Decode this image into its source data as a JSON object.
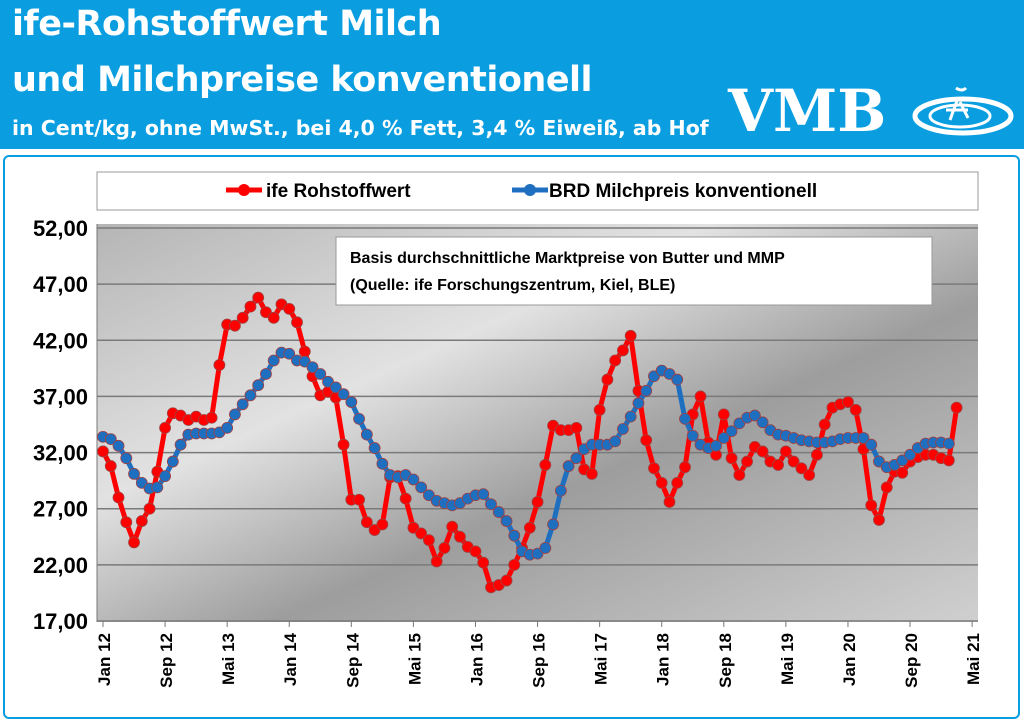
{
  "header": {
    "title_line1": "ife-Rohstoffwert Milch",
    "title_line2": "und Milchpreise konventionell",
    "subtitle": "in Cent/kg, ohne MwSt., bei 4,0 % Fett, 3,4 % Eiweiß, ab Hof",
    "logo_text": "VMB",
    "background_color": "#0a9ee0"
  },
  "chart_data": {
    "type": "line",
    "annotation_line1": "Basis durchschnittliche Marktpreise von Butter und MMP",
    "annotation_line2": "(Quelle: ife Forschungszentrum, Kiel, BLE)",
    "legend_placement": "top",
    "grid": true,
    "ylim": [
      17,
      52
    ],
    "y_ticks": [
      "17,00",
      "22,00",
      "27,00",
      "32,00",
      "37,00",
      "42,00",
      "47,00",
      "52,00"
    ],
    "x_start": "Jan 12",
    "x_ticks": [
      "Jan 12",
      "Sep 12",
      "Mai 13",
      "Jan 14",
      "Sep 14",
      "Mai 15",
      "Jan 16",
      "Sep 16",
      "Mai 17",
      "Jan 18",
      "Sep 18",
      "Mai 19",
      "Jan 20",
      "Sep 20",
      "Mai 21"
    ],
    "series": [
      {
        "name": "ife Rohstoffwert",
        "color": "#ff0000",
        "values": [
          32.1,
          30.8,
          28.0,
          25.8,
          24.0,
          25.9,
          27.0,
          30.3,
          34.2,
          35.5,
          35.3,
          34.9,
          35.2,
          34.9,
          35.1,
          39.8,
          43.4,
          43.3,
          44.0,
          45.0,
          45.8,
          44.5,
          44.0,
          45.2,
          44.8,
          43.6,
          41.0,
          38.8,
          37.1,
          37.4,
          36.9,
          32.7,
          27.8,
          27.8,
          25.8,
          25.1,
          25.6,
          29.8,
          29.9,
          27.9,
          25.3,
          24.8,
          24.2,
          22.3,
          23.5,
          25.4,
          24.5,
          23.6,
          23.2,
          22.2,
          20.0,
          20.2,
          20.6,
          22.0,
          23.5,
          25.3,
          27.6,
          30.9,
          34.4,
          34.0,
          34.0,
          34.2,
          30.5,
          30.1,
          35.8,
          38.5,
          40.2,
          41.1,
          42.4,
          37.5,
          33.1,
          30.6,
          29.3,
          27.6,
          29.3,
          30.7,
          35.4,
          37.0,
          32.9,
          31.8,
          35.4,
          31.5,
          30.0,
          31.2,
          32.5,
          32.1,
          31.2,
          30.9,
          32.1,
          31.2,
          30.6,
          30.0,
          31.8,
          34.5,
          36.0,
          36.3,
          36.5,
          35.8,
          32.3,
          27.3,
          26.0,
          28.9,
          30.3,
          30.2,
          31.2,
          31.6,
          31.8,
          31.8,
          31.5,
          31.3,
          36.0
        ]
      },
      {
        "name": "BRD Milchpreis konventionell",
        "color": "#1f6fc0",
        "values": [
          33.4,
          33.2,
          32.6,
          31.5,
          30.1,
          29.3,
          28.8,
          28.9,
          29.9,
          31.2,
          32.7,
          33.6,
          33.7,
          33.7,
          33.7,
          33.8,
          34.2,
          35.4,
          36.3,
          37.1,
          38.0,
          39.0,
          40.2,
          40.9,
          40.8,
          40.2,
          40.1,
          39.6,
          39.0,
          38.3,
          37.8,
          37.2,
          36.5,
          35.0,
          33.6,
          32.4,
          31.0,
          30.0,
          29.8,
          30.0,
          29.6,
          28.9,
          28.2,
          27.7,
          27.5,
          27.3,
          27.5,
          27.9,
          28.2,
          28.3,
          27.4,
          26.7,
          25.9,
          24.6,
          23.2,
          22.9,
          23.0,
          23.5,
          25.6,
          28.6,
          30.8,
          31.5,
          32.3,
          32.7,
          32.7,
          32.7,
          33.0,
          34.1,
          35.2,
          36.4,
          37.5,
          38.8,
          39.3,
          39.0,
          38.5,
          35.0,
          33.5,
          32.7,
          32.4,
          32.6,
          33.3,
          33.9,
          34.6,
          35.1,
          35.3,
          34.7,
          34.0,
          33.6,
          33.5,
          33.3,
          33.1,
          33.0,
          32.9,
          32.9,
          33.0,
          33.2,
          33.3,
          33.3,
          33.3,
          32.7,
          31.2,
          30.7,
          30.9,
          31.3,
          31.8,
          32.4,
          32.8,
          32.9,
          32.9,
          32.8
        ]
      }
    ]
  }
}
